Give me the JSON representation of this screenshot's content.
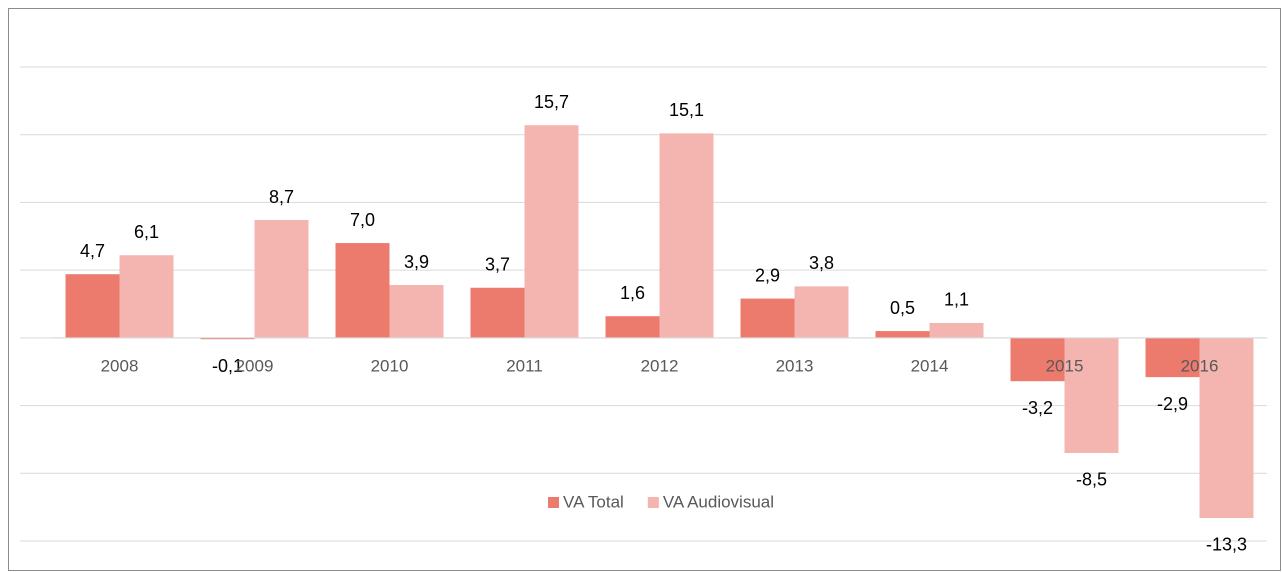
{
  "chart_data": {
    "type": "bar",
    "categories": [
      "2008",
      "2009",
      "2010",
      "2011",
      "2012",
      "2013",
      "2014",
      "2015",
      "2016"
    ],
    "series": [
      {
        "name": "VA Total",
        "color": "#ec7b6e",
        "values": [
          4.7,
          -0.1,
          7.0,
          3.7,
          1.6,
          2.9,
          0.5,
          -3.2,
          -2.9
        ],
        "value_labels": [
          "4,7",
          "-0,1",
          "7,0",
          "3,7",
          "1,6",
          "2,9",
          "0,5",
          "-3,2",
          "-2,9"
        ]
      },
      {
        "name": "VA Audiovisual",
        "color": "#f4b4b0",
        "values": [
          6.1,
          8.7,
          3.9,
          15.7,
          15.1,
          3.8,
          1.1,
          -8.5,
          -13.3
        ],
        "value_labels": [
          "6,1",
          "8,7",
          "3,9",
          "15,7",
          "15,1",
          "3,8",
          "1,1",
          "-8,5",
          "-13,3"
        ]
      }
    ],
    "ylim": [
      -15,
      20
    ],
    "yticks": [
      -15,
      -10,
      -5,
      0,
      5,
      10,
      15,
      20
    ],
    "grid": true,
    "legend": "bottom"
  }
}
